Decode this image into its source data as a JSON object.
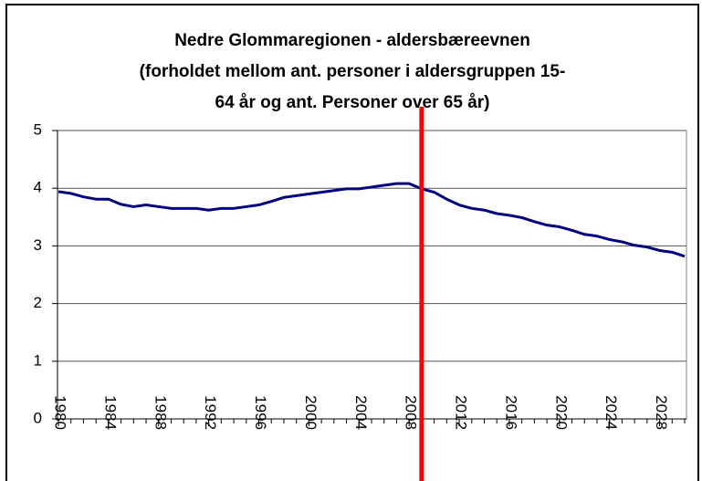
{
  "chart_data": {
    "type": "line",
    "title": [
      "Nedre Glommaregionen - aldersbæreevnen",
      "(forholdet mellom ant. personer i aldersgruppen 15-",
      "64 år og ant. Personer over 65 år)"
    ],
    "x": [
      1980,
      1981,
      1982,
      1983,
      1984,
      1985,
      1986,
      1987,
      1988,
      1989,
      1990,
      1991,
      1992,
      1993,
      1994,
      1995,
      1996,
      1997,
      1998,
      1999,
      2000,
      2001,
      2002,
      2003,
      2004,
      2005,
      2006,
      2007,
      2008,
      2009,
      2010,
      2011,
      2012,
      2013,
      2014,
      2015,
      2016,
      2017,
      2018,
      2019,
      2020,
      2021,
      2022,
      2023,
      2024,
      2025,
      2026,
      2027,
      2028,
      2029,
      2030
    ],
    "series": [
      {
        "color": "#000080",
        "values": [
          3.94,
          3.91,
          3.85,
          3.81,
          3.81,
          3.72,
          3.68,
          3.71,
          3.68,
          3.65,
          3.65,
          3.65,
          3.62,
          3.65,
          3.65,
          3.68,
          3.71,
          3.77,
          3.84,
          3.87,
          3.9,
          3.93,
          3.96,
          3.99,
          3.99,
          4.02,
          4.05,
          4.08,
          4.08,
          3.99,
          3.93,
          3.81,
          3.71,
          3.65,
          3.62,
          3.56,
          3.53,
          3.49,
          3.42,
          3.36,
          3.33,
          3.27,
          3.2,
          3.17,
          3.11,
          3.07,
          3.01,
          2.98,
          2.92,
          2.89,
          2.82
        ]
      }
    ],
    "xlim": [
      1980,
      2030
    ],
    "xticks": [
      1980,
      1984,
      1988,
      1992,
      1996,
      2000,
      2004,
      2008,
      2012,
      2016,
      2020,
      2024,
      2028
    ],
    "ylim": [
      0,
      5
    ],
    "yticks": [
      0,
      1,
      2,
      3,
      4,
      5
    ],
    "grid": true,
    "marker_line": {
      "x": 2009,
      "color": "#ff0000"
    }
  }
}
